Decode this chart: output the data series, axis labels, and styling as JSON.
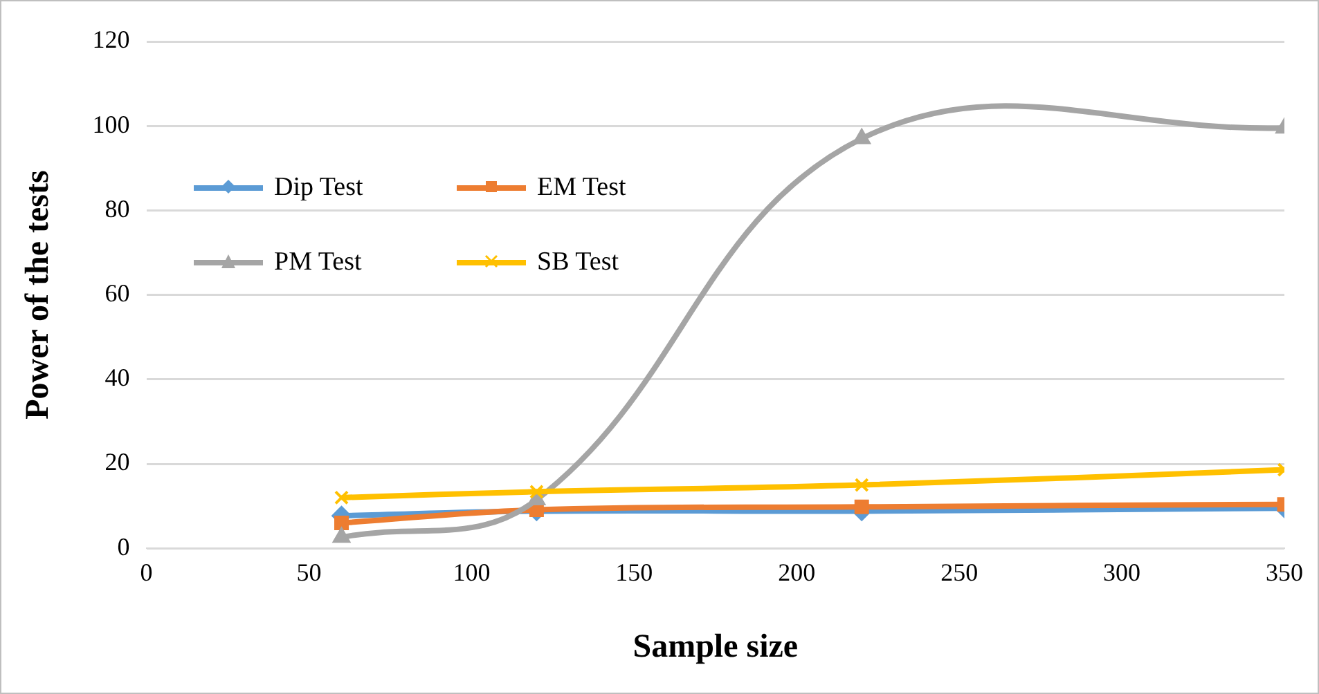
{
  "chart_data": {
    "type": "line",
    "xlabel": "Sample size",
    "ylabel": "Power of the tests",
    "x": [
      60,
      120,
      220,
      350
    ],
    "xlim": [
      0,
      350
    ],
    "xticks": [
      0,
      50,
      100,
      150,
      200,
      250,
      300,
      350
    ],
    "ylim": [
      0,
      120
    ],
    "yticks": [
      0,
      20,
      40,
      60,
      80,
      100,
      120
    ],
    "grid": "y",
    "legend": "top left",
    "series": [
      {
        "name": "Dip Test",
        "color": "#5b9bd5",
        "marker": "diamond",
        "values": [
          7.7,
          8.8,
          8.8,
          9.5
        ]
      },
      {
        "name": "EM Test",
        "color": "#ed7d31",
        "marker": "square",
        "values": [
          6,
          9.1,
          9.8,
          10.4
        ]
      },
      {
        "name": "PM Test",
        "color": "#a5a5a5",
        "marker": "triangle",
        "values": [
          2.6,
          11.5,
          97,
          99.5
        ]
      },
      {
        "name": "SB Test",
        "color": "#ffc000",
        "marker": "cross",
        "values": [
          12,
          13.4,
          15,
          18.6
        ]
      }
    ]
  }
}
